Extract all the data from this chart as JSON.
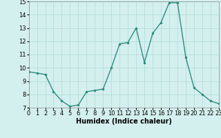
{
  "x": [
    0,
    1,
    2,
    3,
    4,
    5,
    6,
    7,
    8,
    9,
    10,
    11,
    12,
    13,
    14,
    15,
    16,
    17,
    18,
    19,
    20,
    21,
    22,
    23
  ],
  "y": [
    9.7,
    9.6,
    9.5,
    8.2,
    7.5,
    7.1,
    7.2,
    8.2,
    8.3,
    8.4,
    10.0,
    11.8,
    11.9,
    13.0,
    10.4,
    12.6,
    13.4,
    14.9,
    14.9,
    10.8,
    8.5,
    8.0,
    7.5,
    7.3
  ],
  "xlabel": "Humidex (Indice chaleur)",
  "ylim": [
    7,
    15
  ],
  "xlim": [
    0,
    23
  ],
  "yticks": [
    7,
    8,
    9,
    10,
    11,
    12,
    13,
    14,
    15
  ],
  "xticks": [
    0,
    1,
    2,
    3,
    4,
    5,
    6,
    7,
    8,
    9,
    10,
    11,
    12,
    13,
    14,
    15,
    16,
    17,
    18,
    19,
    20,
    21,
    22,
    23
  ],
  "line_color": "#2e8b7a",
  "bg_color": "#d4f0ee",
  "grid_color": "#b0d8d4",
  "label_fontsize": 7,
  "tick_fontsize": 6
}
